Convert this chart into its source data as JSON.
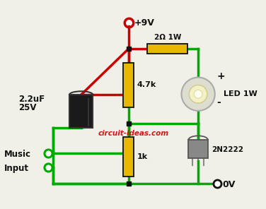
{
  "bg_color": "#f0f0e8",
  "wire_green": "#00aa00",
  "wire_red": "#cc0000",
  "wire_black": "#111111",
  "resistor_fill": "#e8b800",
  "resistor_edge": "#111111",
  "title_color": "#cc0000",
  "title": "circuit-ideas.com",
  "v9_label": "+9V",
  "r1_label": "2Ω 1W",
  "r2_label": "4.7k",
  "r3_label": "1k",
  "cap_label1": "2.2uF",
  "cap_label2": "25V",
  "led_label": "LED 1W",
  "trans_label": "2N2222",
  "music_label1": "Music",
  "music_label2": "Input",
  "gnd_label": "0V",
  "plus_label": "+",
  "minus_label": "-",
  "lw": 2.5
}
